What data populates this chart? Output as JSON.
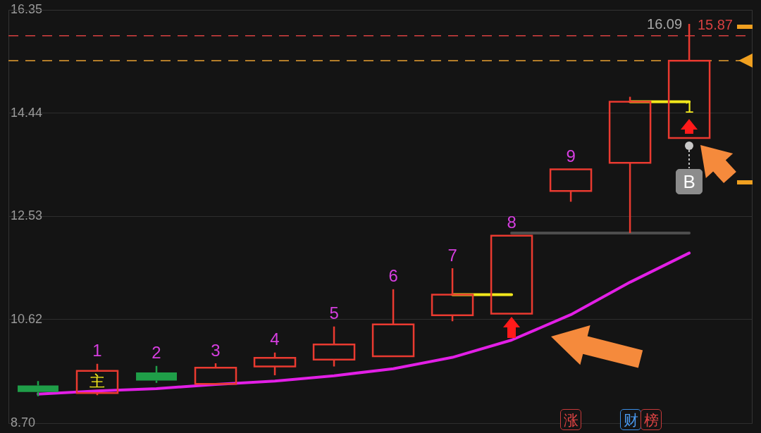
{
  "chart_data": {
    "type": "candlestick",
    "categories": [
      null,
      null,
      null,
      null,
      null,
      null,
      null,
      null,
      null,
      null,
      null,
      null
    ],
    "ohlc": [
      [
        9.4,
        9.48,
        9.2,
        9.28
      ],
      [
        9.26,
        9.8,
        9.22,
        9.67
      ],
      [
        9.64,
        9.76,
        9.45,
        9.49
      ],
      [
        9.43,
        9.81,
        9.43,
        9.73
      ],
      [
        9.75,
        10.01,
        9.59,
        9.91
      ],
      [
        9.88,
        10.49,
        9.75,
        10.16
      ],
      [
        9.94,
        11.18,
        9.94,
        10.53
      ],
      [
        10.7,
        11.57,
        10.59,
        11.08
      ],
      [
        10.73,
        12.17,
        10.73,
        12.17
      ],
      [
        13.0,
        13.4,
        12.8,
        13.4
      ],
      [
        13.52,
        14.74,
        12.22,
        14.65
      ],
      [
        13.98,
        16.09,
        13.98,
        15.41
      ]
    ],
    "colors": [
      "#1f9e48",
      "#ea3a30",
      "#1f9e48",
      "#ea3a30",
      "#ea3a30",
      "#ea3a30",
      "#ea3a30",
      "#ea3a30",
      "#ea3a30",
      "#ea3a30",
      "#ea3a30",
      "#ea3a30"
    ],
    "value_labels": [
      null,
      "1",
      "2",
      "3",
      "4",
      "5",
      "6",
      "7",
      "8",
      "9",
      null,
      null
    ],
    "series": [
      {
        "type": "line",
        "color": "#e21fe6",
        "values": [
          9.24,
          9.3,
          9.34,
          9.42,
          9.48,
          9.58,
          9.71,
          9.92,
          10.24,
          10.71,
          11.31,
          11.85
        ]
      },
      {
        "type": "line",
        "color": "#f2e81c",
        "values": [
          null,
          null,
          null,
          null,
          null,
          null,
          null,
          11.08,
          11.08,
          null,
          14.65,
          14.65
        ]
      },
      {
        "type": "line",
        "color": "#4d4d4d",
        "values": [
          null,
          null,
          null,
          null,
          null,
          null,
          null,
          null,
          12.22,
          12.22,
          12.22,
          12.22
        ]
      }
    ],
    "ylim": [
      8.7,
      16.35
    ],
    "yticks": [
      {
        "value": 8.7,
        "label": "8.70"
      },
      10.62,
      12.53,
      14.44,
      16.35
    ],
    "grid": "y",
    "tick_labels": "y",
    "ref_lines": [
      {
        "axis": "y",
        "value": 15.87,
        "label": "15.87",
        "color": "#d84040",
        "line_style": "dashed"
      },
      {
        "axis": "y",
        "value": 15.41,
        "color": "#e8a030",
        "line_style": "dashed"
      }
    ],
    "annotations": [
      "主",
      "1",
      "B",
      "涨",
      "财",
      "榜",
      "16.09"
    ]
  }
}
